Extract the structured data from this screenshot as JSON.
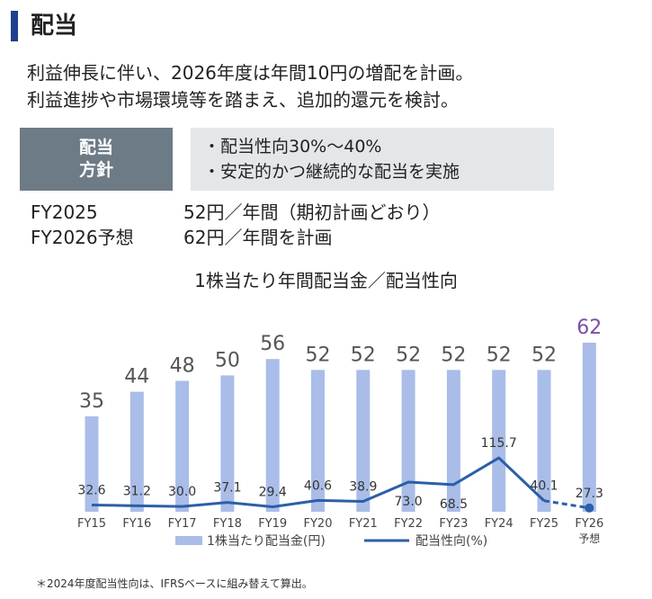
{
  "header": {
    "title": "配当"
  },
  "lead": {
    "line1": "利益伸長に伴い、2026年度は年間10円の増配を計画。",
    "line2": "利益進捗や市場環境等を踏まえ、追加的還元を検討。"
  },
  "policy": {
    "label_line1": "配当",
    "label_line2": "方針",
    "item1": "・配当性向30%～40%",
    "item2": "・安定的かつ継続的な配当を実施"
  },
  "plan": [
    {
      "fy": "FY2025",
      "text": "52円／年間（期初計画どおり）"
    },
    {
      "fy": "FY2026予想",
      "text": "62円／年間を計画"
    }
  ],
  "chart_data": {
    "type": "bar",
    "title": "1株当たり年間配当金／配当性向",
    "categories": [
      "FY15",
      "FY16",
      "FY17",
      "FY18",
      "FY19",
      "FY20",
      "FY21",
      "FY22",
      "FY23",
      "FY24",
      "FY25",
      "FY26"
    ],
    "category_sublabels": [
      "",
      "",
      "",
      "",
      "",
      "",
      "",
      "",
      "",
      "",
      "",
      "予想"
    ],
    "series": [
      {
        "name": "1株当たり配当金(円)",
        "type": "bar",
        "values": [
          35,
          44,
          48,
          50,
          56,
          52,
          52,
          52,
          52,
          52,
          52,
          62
        ],
        "color": "#a9bde8",
        "label_color": "#555555",
        "highlight_last_color": "#7b4ea8"
      },
      {
        "name": "配当性向(%)",
        "type": "line",
        "values": [
          32.6,
          31.2,
          30.0,
          37.1,
          29.4,
          40.6,
          38.9,
          73.0,
          68.5,
          115.7,
          40.1,
          27.3
        ],
        "color": "#2b5fa8",
        "dashed_last_segment": true
      }
    ],
    "legend": "bottom",
    "grid": false
  },
  "footnote": "＊2024年度配当性向は、IFRSベースに組み替えて算出。"
}
